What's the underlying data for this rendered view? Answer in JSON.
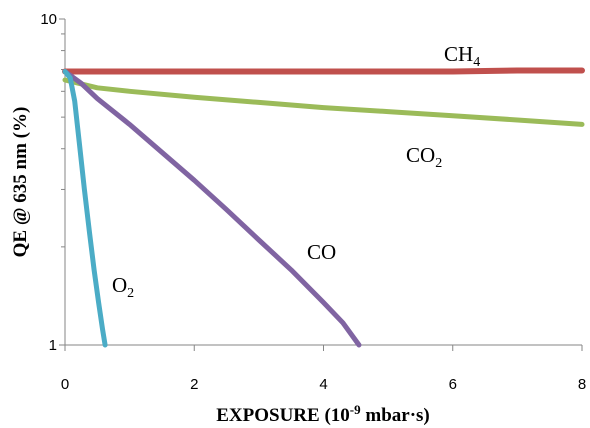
{
  "chart_data": {
    "type": "line",
    "title": "",
    "xlabel": {
      "text": "EXPOSURE (10",
      "sup": "-9",
      "tail": " mbar·s)"
    },
    "ylabel": "QE @ 635 nm (%)",
    "xlim": [
      0,
      8
    ],
    "ylim": [
      1,
      10
    ],
    "yscale": "log",
    "x_ticks": [
      "0",
      "2",
      "4",
      "6",
      "8"
    ],
    "y_ticks": [
      "1",
      "10"
    ],
    "grid": false,
    "legend": "none",
    "series": [
      {
        "name": "CH4",
        "label_parts": {
          "base": "CH",
          "sub": "4"
        },
        "color": "#c0504d",
        "points": [
          [
            0,
            6.9
          ],
          [
            1,
            6.9
          ],
          [
            2,
            6.9
          ],
          [
            3,
            6.9
          ],
          [
            4,
            6.9
          ],
          [
            5,
            6.9
          ],
          [
            6,
            6.9
          ],
          [
            7,
            6.95
          ],
          [
            8,
            6.95
          ]
        ]
      },
      {
        "name": "CO2",
        "label_parts": {
          "base": "CO",
          "sub": "2"
        },
        "color": "#9bbb59",
        "points": [
          [
            0,
            6.5
          ],
          [
            0.5,
            6.15
          ],
          [
            1,
            6.0
          ],
          [
            2,
            5.75
          ],
          [
            3,
            5.55
          ],
          [
            4,
            5.35
          ],
          [
            5,
            5.2
          ],
          [
            6,
            5.05
          ],
          [
            7,
            4.9
          ],
          [
            8,
            4.75
          ]
        ]
      },
      {
        "name": "CO",
        "label_parts": {
          "base": "CO",
          "sub": ""
        },
        "color": "#8064a2",
        "points": [
          [
            0,
            6.9
          ],
          [
            0.25,
            6.35
          ],
          [
            0.5,
            5.7
          ],
          [
            1,
            4.75
          ],
          [
            1.5,
            3.9
          ],
          [
            2,
            3.2
          ],
          [
            2.5,
            2.6
          ],
          [
            3,
            2.1
          ],
          [
            3.5,
            1.7
          ],
          [
            4,
            1.35
          ],
          [
            4.3,
            1.17
          ],
          [
            4.55,
            1.0
          ]
        ]
      },
      {
        "name": "O2",
        "label_parts": {
          "base": "O",
          "sub": "2"
        },
        "color": "#4bacc6",
        "points": [
          [
            0,
            6.9
          ],
          [
            0.08,
            6.6
          ],
          [
            0.15,
            5.6
          ],
          [
            0.22,
            4.2
          ],
          [
            0.3,
            3.0
          ],
          [
            0.38,
            2.2
          ],
          [
            0.45,
            1.7
          ],
          [
            0.52,
            1.35
          ],
          [
            0.58,
            1.12
          ],
          [
            0.62,
            1.0
          ]
        ]
      }
    ]
  }
}
